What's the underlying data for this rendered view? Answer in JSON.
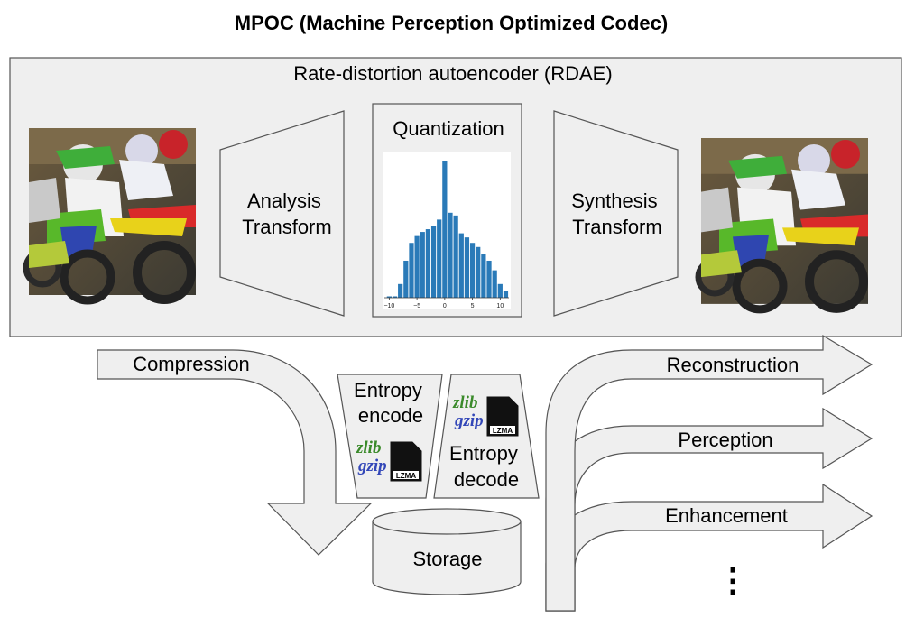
{
  "title": "MPOC (Machine Perception Optimized Codec)",
  "rdae": {
    "label": "Rate-distortion autoencoder (RDAE)",
    "analysis": [
      "Analysis",
      "Transform"
    ],
    "quantization": {
      "label": "Quantization",
      "chart_data": {
        "type": "bar",
        "x": [
          -10,
          -9,
          -8,
          -7,
          -6,
          -5,
          -4,
          -3,
          -2,
          -1,
          0,
          1,
          2,
          3,
          4,
          5,
          6,
          7,
          8,
          9,
          10,
          11
        ],
        "values": [
          0.01,
          0.01,
          0.1,
          0.27,
          0.4,
          0.45,
          0.48,
          0.5,
          0.52,
          0.57,
          1.0,
          0.62,
          0.6,
          0.47,
          0.44,
          0.4,
          0.37,
          0.32,
          0.27,
          0.2,
          0.1,
          0.05
        ],
        "xticks": [
          -10,
          -5,
          0,
          5,
          10
        ],
        "tick_labels": [
          "−10",
          "−5",
          "0",
          "5",
          "10"
        ],
        "xlim": [
          -11.2,
          11.9
        ],
        "ylim": [
          0,
          1.04
        ],
        "color": "#2a7ab8"
      }
    },
    "synthesis": [
      "Synthesis",
      "Transform"
    ]
  },
  "flow": {
    "compression": "Compression",
    "entropy_encode": [
      "Entropy",
      "encode"
    ],
    "entropy_decode": [
      "Entropy",
      "decode"
    ],
    "storage": "Storage",
    "outputs": [
      "Reconstruction",
      "Perception",
      "Enhancement"
    ],
    "more": "⋮"
  },
  "logos": {
    "zlib": "zlib",
    "gzip": "gzip",
    "lzma": "LZMA"
  },
  "colors": {
    "panel": "#efefef",
    "stroke": "#555555",
    "bar": "#2a7ab8",
    "zlib_green": "#3a8a2a",
    "gzip_blue": "#3347b8"
  }
}
